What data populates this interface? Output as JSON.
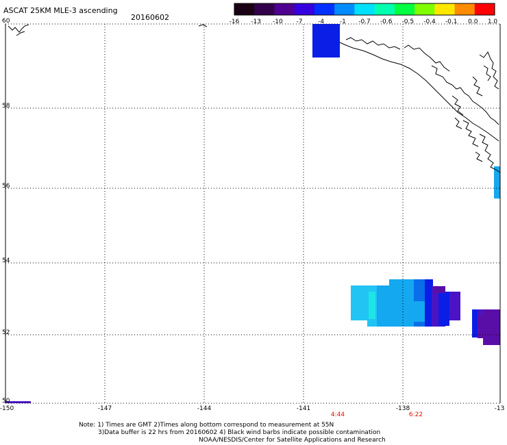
{
  "title": "ASCAT 25KM MLE-3 ascending",
  "date": "20160602",
  "colorbar": {
    "labels": [
      "-16",
      "-13",
      "-10",
      "-7",
      "-4",
      "-1",
      "-0.7",
      "-0.6",
      "-0.5",
      "-0.4",
      "-0.1",
      "0.0",
      "1.0"
    ],
    "colors": [
      "#1a0014",
      "#32004a",
      "#4e0090",
      "#3500e0",
      "#0030ff",
      "#008cff",
      "#00e0ff",
      "#00ffb0",
      "#00ff40",
      "#80ff00",
      "#ffe800",
      "#ff8c00",
      "#ff0000"
    ]
  },
  "y_axis": {
    "labels": [
      "60",
      "58",
      "56",
      "54",
      "52",
      "50"
    ]
  },
  "x_axis": {
    "labels": [
      "-150",
      "-147",
      "-144",
      "-141",
      "-138",
      "-13"
    ]
  },
  "times": [
    {
      "label": "4:44"
    },
    {
      "label": "6:22"
    }
  ],
  "notes": {
    "line1": "Note: 1) Times are GMT 2)Times along bottom correspond to measurement at 55N",
    "line2": "3)Data buffer is 22 hrs from 20160602 4) Black wind barbs indicate possible contamination",
    "line3": "NOAA/NESDIS/Center for Satellite Applications and Research"
  },
  "swath_colors": {
    "blue": "#0a1ee6",
    "skyblue": "#14a8f0",
    "cyan": "#22c4f4",
    "aqua": "#1ee6e6",
    "mid": "#0a6eea",
    "violet": "#4a14c4",
    "purple": "#5a0ea8"
  }
}
